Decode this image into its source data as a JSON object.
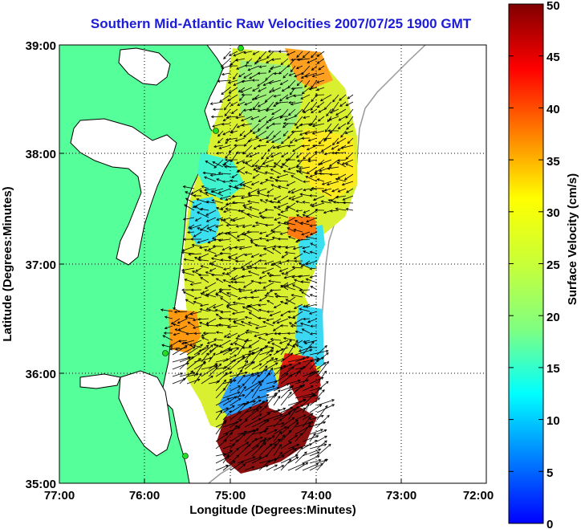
{
  "title": "Southern Mid-Atlantic Raw Velocities 2007/07/25 1900 GMT",
  "axes": {
    "xlabel": "Longitude (Degrees:Minutes)",
    "ylabel": "Latitude (Degrees:Minutes)",
    "xticks": [
      "77:00",
      "76:00",
      "75:00",
      "74:00",
      "73:00",
      "72:00"
    ],
    "yticks": [
      "39:00",
      "38:00",
      "37:00",
      "36:00",
      "35:00"
    ],
    "grid": "dotted"
  },
  "colorbar": {
    "label": "Surface Velocity (cm/s)",
    "ticks": [
      "0",
      "5",
      "10",
      "15",
      "20",
      "25",
      "30",
      "35",
      "40",
      "45",
      "50"
    ],
    "range": [
      0,
      50
    ],
    "colormap": "jet"
  },
  "colors": {
    "land": "#55ff99",
    "coastline": "#000000",
    "bathymetry": "#999999",
    "title": "#1c1cd6",
    "stations": "#22dd22"
  },
  "map": {
    "lon_range": [
      -77,
      -72
    ],
    "lat_range": [
      35,
      39
    ]
  }
}
